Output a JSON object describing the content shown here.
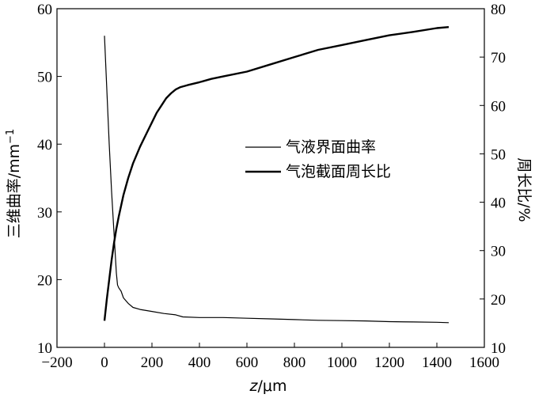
{
  "chart_data": {
    "type": "line",
    "x_axis": {
      "label_italic": "z",
      "label_rest": "/μm",
      "range": [
        -200,
        1600
      ],
      "ticks": [
        -200,
        0,
        200,
        400,
        600,
        800,
        1000,
        1200,
        1400,
        1600
      ],
      "tick_labels": [
        "−200",
        "0",
        "200",
        "400",
        "600",
        "800",
        "1000",
        "1200",
        "1400",
        "1600"
      ]
    },
    "y_left": {
      "label": "三维曲率/mm",
      "label_sup": "−1",
      "range": [
        10,
        60
      ],
      "ticks": [
        10,
        20,
        30,
        40,
        50,
        60
      ]
    },
    "y_right": {
      "label": "周长比/%",
      "range": [
        10,
        80
      ],
      "ticks": [
        10,
        20,
        30,
        40,
        50,
        60,
        70,
        80
      ]
    },
    "legend": {
      "placement": "center-right",
      "entries": [
        "气液界面曲率",
        "气泡截面周长比"
      ]
    },
    "grid": false,
    "series": [
      {
        "name": "气液界面曲率",
        "axis": "left",
        "stroke_width": 1.2,
        "x": [
          0,
          10,
          20,
          30,
          40,
          50,
          55,
          60,
          70,
          80,
          100,
          120,
          150,
          200,
          250,
          300,
          330,
          400,
          500,
          600,
          700,
          800,
          900,
          1000,
          1100,
          1200,
          1300,
          1400,
          1450
        ],
        "y": [
          56,
          48,
          40,
          33,
          27,
          21,
          19.2,
          18.8,
          18.3,
          17.3,
          16.5,
          15.9,
          15.6,
          15.3,
          15.0,
          14.8,
          14.5,
          14.4,
          14.4,
          14.3,
          14.2,
          14.1,
          14.0,
          13.95,
          13.9,
          13.8,
          13.75,
          13.7,
          13.65
        ]
      },
      {
        "name": "气泡截面周长比",
        "axis": "right",
        "stroke_width": 2.4,
        "x": [
          0,
          10,
          20,
          30,
          40,
          50,
          60,
          80,
          100,
          120,
          150,
          180,
          200,
          220,
          240,
          260,
          280,
          300,
          320,
          350,
          400,
          450,
          500,
          600,
          700,
          800,
          900,
          1000,
          1100,
          1200,
          1300,
          1400,
          1450
        ],
        "y": [
          15.5,
          20,
          24,
          28,
          31.5,
          34.5,
          37,
          41.5,
          45,
          48,
          51.5,
          54.5,
          56.5,
          58.5,
          60,
          61.5,
          62.5,
          63.3,
          63.8,
          64.2,
          64.8,
          65.5,
          66,
          67,
          68.5,
          70,
          71.5,
          72.5,
          73.5,
          74.5,
          75.2,
          76,
          76.2
        ]
      }
    ]
  }
}
